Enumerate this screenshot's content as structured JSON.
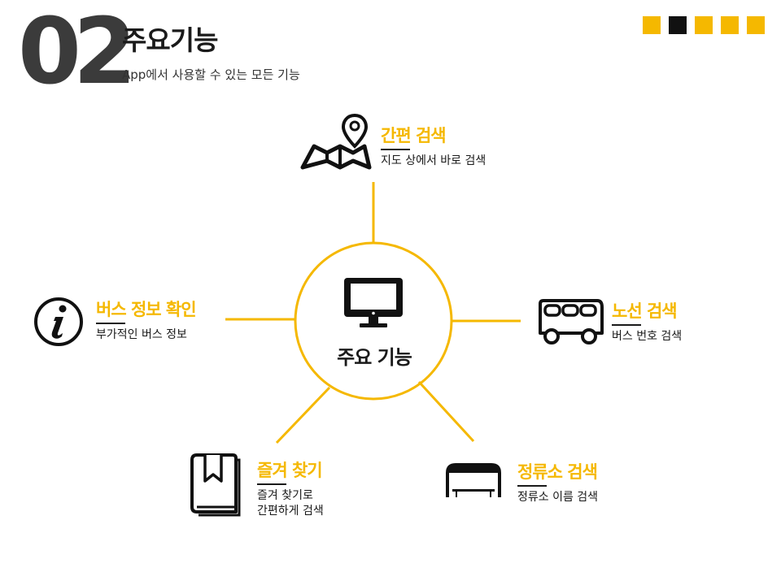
{
  "header": {
    "number": "02",
    "title": "주요기능",
    "subtitle": "App에서 사용할 수 있는 모든 기능"
  },
  "decoration": {
    "squares": [
      "#f5b800",
      "#111111",
      "#f5b800",
      "#f5b800",
      "#f5b800"
    ]
  },
  "center": {
    "label": "주요 기능",
    "icon": "monitor-icon"
  },
  "features": {
    "map_search": {
      "title": "간편 검색",
      "desc": "지도 상에서 바로 검색",
      "icon": "map-pin-icon"
    },
    "route_search": {
      "title": "노선 검색",
      "desc": "버스 번호 검색",
      "icon": "bus-icon"
    },
    "stop_search": {
      "title": "정류소 검색",
      "desc": "정류소 이름 검색",
      "icon": "bus-stop-icon"
    },
    "favorites": {
      "title": "즐겨 찾기",
      "desc_line1": "즐겨 찾기로",
      "desc_line2": "간편하게 검색",
      "icon": "bookmark-icon"
    },
    "bus_info": {
      "title": "버스 정보 확인",
      "desc": "부가적인 버스 정보",
      "icon": "info-icon"
    }
  },
  "colors": {
    "accent": "#f5b800",
    "dark": "#1a1a1a",
    "number": "#3b3b3b"
  }
}
